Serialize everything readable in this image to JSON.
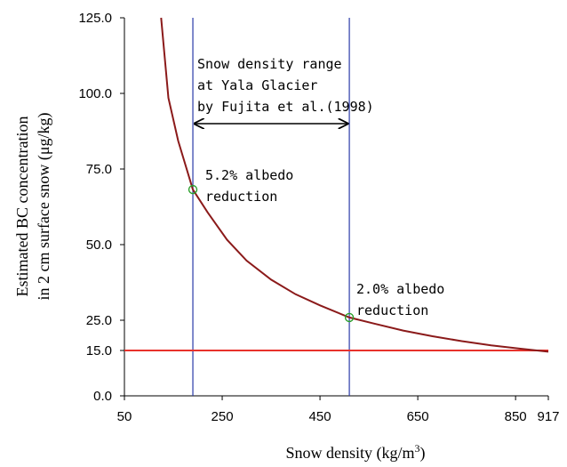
{
  "chart_data": {
    "type": "line",
    "xlabel": "Snow density (kg/m",
    "xlabel_sup": "3",
    "xlabel_close": ")",
    "ylabel_line1": "Estimated BC concentration",
    "ylabel_line2": "in 2 cm surface snow (μg/kg)",
    "xlim": [
      50,
      917
    ],
    "ylim": [
      0,
      125
    ],
    "x_ticks": [
      "50",
      "250",
      "450",
      "650",
      "850",
      "917"
    ],
    "x_tick_values": [
      50,
      250,
      450,
      650,
      850,
      917
    ],
    "y_ticks": [
      "0.0",
      "15.0",
      "25.0",
      "50.0",
      "75.0",
      "100.0",
      "125.0"
    ],
    "y_tick_values": [
      0,
      15,
      25,
      50,
      75,
      100,
      125
    ],
    "grid": false,
    "series": [
      {
        "kind": "curve",
        "color": "#8b1a1a",
        "x": [
          125,
          140,
          160,
          190,
          220,
          260,
          300,
          350,
          400,
          450,
          510,
          560,
          620,
          680,
          740,
          800,
          860,
          917
        ],
        "y": [
          125,
          98.5,
          84.3,
          68.2,
          60.7,
          51.6,
          44.7,
          38.4,
          33.6,
          29.9,
          25.9,
          23.9,
          21.6,
          19.7,
          18.1,
          16.7,
          15.6,
          14.6
        ]
      },
      {
        "kind": "hline",
        "color": "#e8322c",
        "y": 15
      },
      {
        "kind": "vline",
        "color": "#2a3aa8",
        "x": 190
      },
      {
        "kind": "vline",
        "color": "#2a3aa8",
        "x": 510
      }
    ],
    "points": [
      {
        "x": 190,
        "y": 68.2,
        "color": "#2ca02c"
      },
      {
        "x": 510,
        "y": 25.9,
        "color": "#2ca02c"
      }
    ],
    "range_arrow": {
      "x1": 190,
      "x2": 510,
      "y": 90
    },
    "annotations": {
      "density_range": [
        "Snow density range",
        "at Yala Glacier",
        "by Fujita et al.(1998)"
      ],
      "low_point": [
        "5.2% albedo",
        "reduction"
      ],
      "high_point": [
        "2.0% albedo",
        "reduction"
      ]
    }
  }
}
